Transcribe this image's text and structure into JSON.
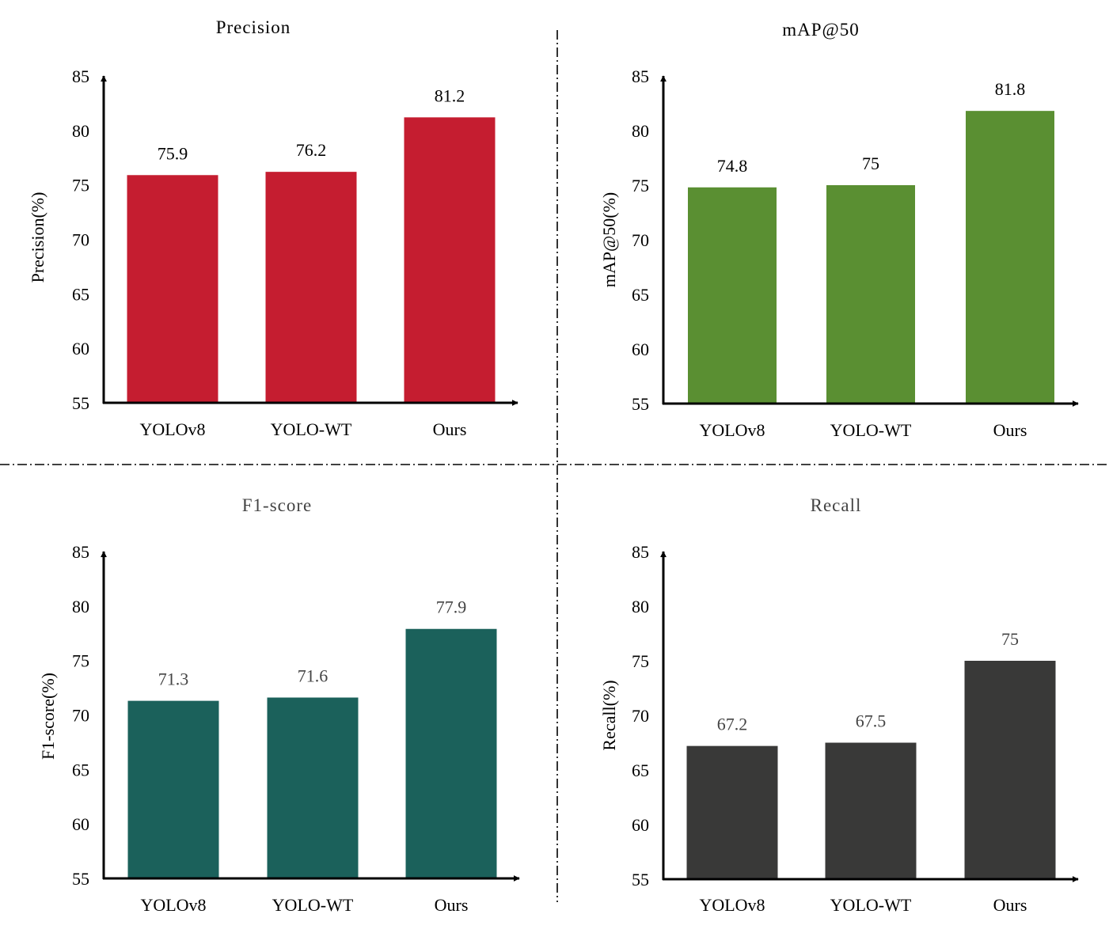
{
  "chart_data": [
    {
      "type": "bar",
      "title": "Precision",
      "xlabel": "",
      "ylabel": "Precision(%)",
      "categories": [
        "YOLOv8",
        "YOLO-WT",
        "Ours"
      ],
      "values": [
        75.9,
        76.2,
        81.2
      ],
      "value_labels": [
        "75.9",
        "76.2",
        "81.2"
      ],
      "yticks": [
        "55",
        "60",
        "65",
        "70",
        "75",
        "80",
        "85"
      ],
      "ylim": [
        55,
        85
      ],
      "grid": false,
      "color": "#c51d30",
      "title_color": "#000000",
      "value_label_color": "#000000"
    },
    {
      "type": "bar",
      "title": "mAP@50",
      "xlabel": "",
      "ylabel": "mAP@50(%)",
      "categories": [
        "YOLOv8",
        "YOLO-WT",
        "Ours"
      ],
      "values": [
        74.8,
        75,
        81.8
      ],
      "value_labels": [
        "74.8",
        "75",
        "81.8"
      ],
      "yticks": [
        "55",
        "60",
        "65",
        "70",
        "75",
        "80",
        "85"
      ],
      "ylim": [
        55,
        85
      ],
      "grid": false,
      "color": "#5a8f32",
      "title_color": "#000000",
      "value_label_color": "#000000"
    },
    {
      "type": "bar",
      "title": "F1-score",
      "xlabel": "",
      "ylabel": "F1-score(%)",
      "categories": [
        "YOLOv8",
        "YOLO-WT",
        "Ours"
      ],
      "values": [
        71.3,
        71.6,
        77.9
      ],
      "value_labels": [
        "71.3",
        "71.6",
        "77.9"
      ],
      "yticks": [
        "55",
        "60",
        "65",
        "70",
        "75",
        "80",
        "85"
      ],
      "ylim": [
        55,
        85
      ],
      "grid": false,
      "color": "#1b615b",
      "title_color": "#444444",
      "value_label_color": "#444444"
    },
    {
      "type": "bar",
      "title": "Recall",
      "xlabel": "",
      "ylabel": "Recall(%)",
      "categories": [
        "YOLOv8",
        "YOLO-WT",
        "Ours"
      ],
      "values": [
        67.2,
        67.5,
        75
      ],
      "value_labels": [
        "67.2",
        "67.5",
        "75"
      ],
      "yticks": [
        "55",
        "60",
        "65",
        "70",
        "75",
        "80",
        "85"
      ],
      "ylim": [
        55,
        85
      ],
      "grid": false,
      "color": "#393938",
      "title_color": "#444444",
      "value_label_color": "#444444"
    }
  ]
}
